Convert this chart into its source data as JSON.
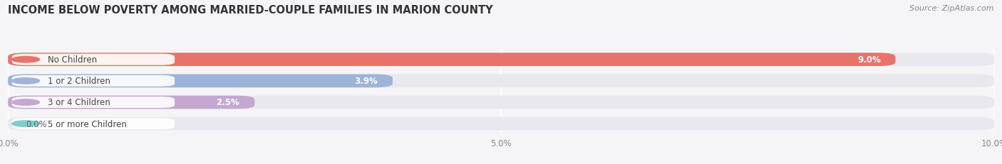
{
  "title": "INCOME BELOW POVERTY AMONG MARRIED-COUPLE FAMILIES IN MARION COUNTY",
  "source": "Source: ZipAtlas.com",
  "categories": [
    "No Children",
    "1 or 2 Children",
    "3 or 4 Children",
    "5 or more Children"
  ],
  "values": [
    9.0,
    3.9,
    2.5,
    0.0
  ],
  "bar_colors": [
    "#E8736A",
    "#9EB3D8",
    "#C4A8D0",
    "#7ECECE"
  ],
  "xlim": [
    0,
    10.0
  ],
  "xticks": [
    0.0,
    5.0,
    10.0
  ],
  "xtick_labels": [
    "0.0%",
    "5.0%",
    "10.0%"
  ],
  "title_fontsize": 10.5,
  "source_fontsize": 8.0,
  "bar_label_fontsize": 8.5,
  "category_fontsize": 8.5,
  "background_color": "#f5f5f8",
  "bar_bg_color": "#e8e8ee"
}
